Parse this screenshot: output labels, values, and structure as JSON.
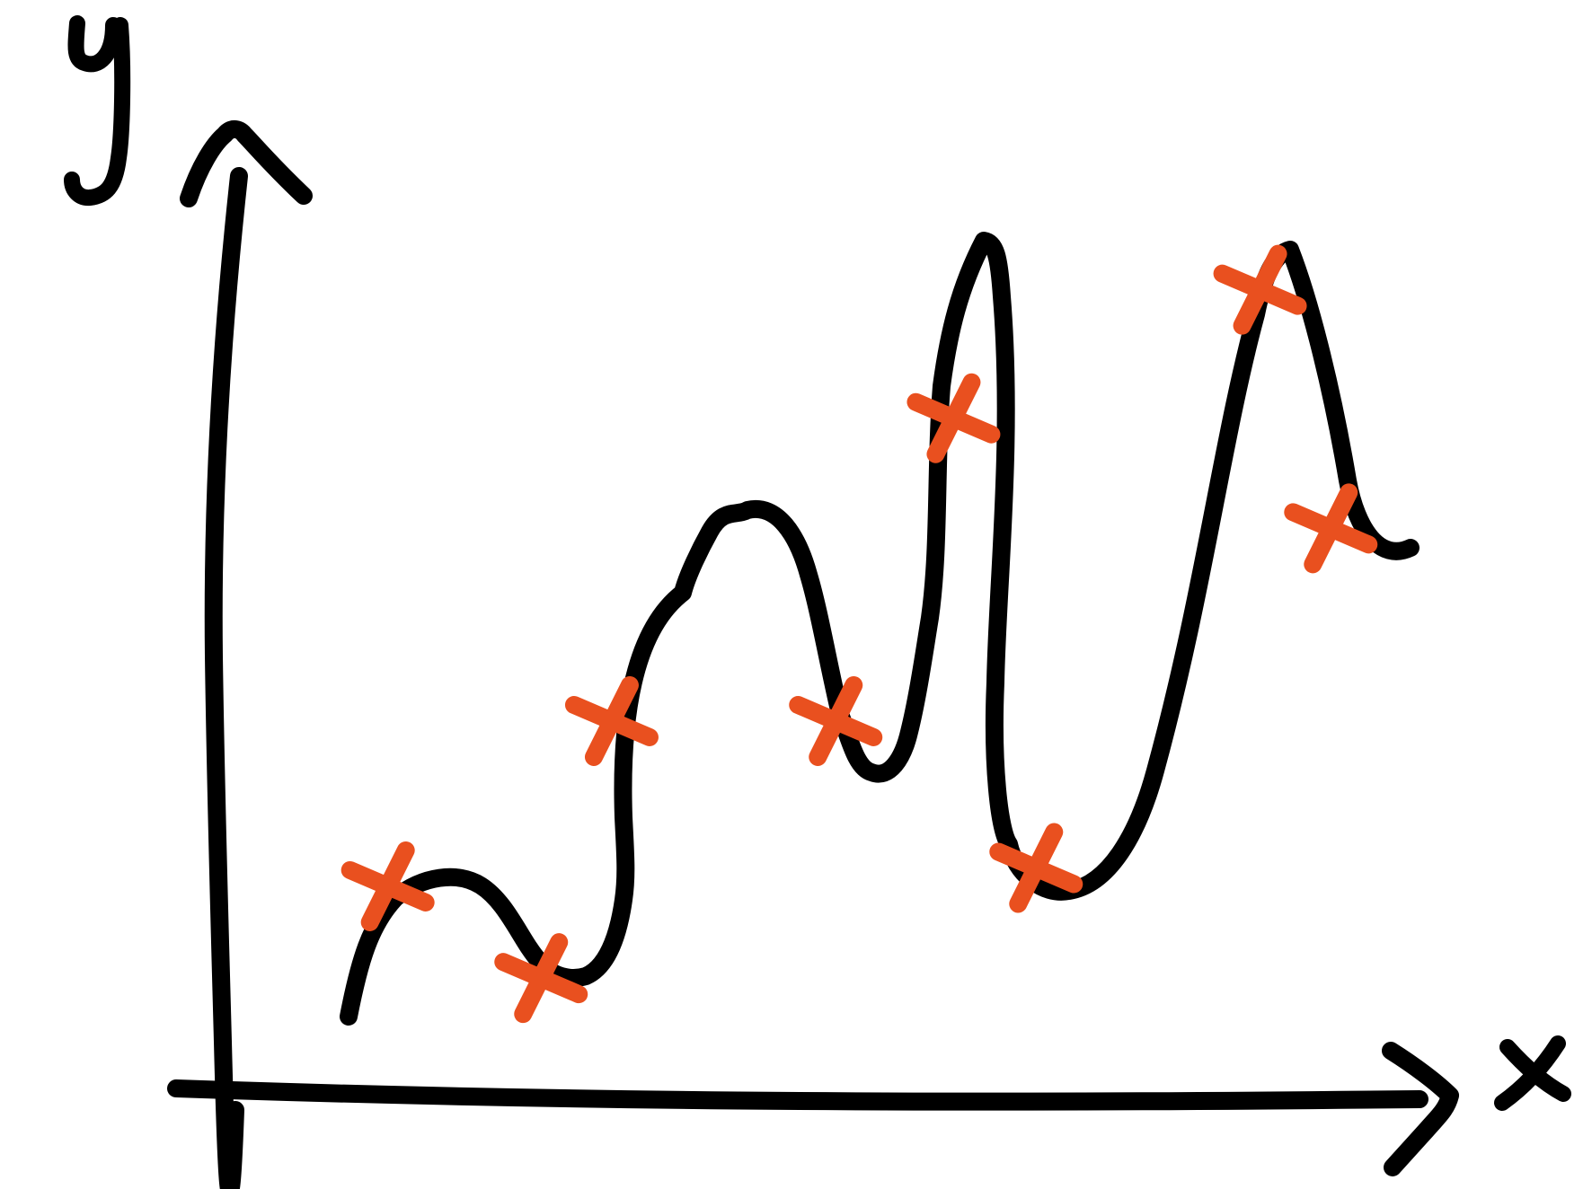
{
  "chart_data": {
    "type": "line",
    "xlabel": "x",
    "ylabel": "y",
    "title": "",
    "series": [
      {
        "kind": "curve",
        "color": "#000000"
      },
      {
        "kind": "markers",
        "marker": "cross",
        "color": "#e9501f",
        "points": [
          {
            "x": 0.14,
            "y": 0.23
          },
          {
            "x": 0.27,
            "y": 0.13
          },
          {
            "x": 0.33,
            "y": 0.41
          },
          {
            "x": 0.52,
            "y": 0.41
          },
          {
            "x": 0.62,
            "y": 0.74
          },
          {
            "x": 0.69,
            "y": 0.25
          },
          {
            "x": 0.88,
            "y": 0.88
          },
          {
            "x": 0.94,
            "y": 0.62
          }
        ]
      }
    ],
    "grid": false,
    "legend": "none"
  }
}
